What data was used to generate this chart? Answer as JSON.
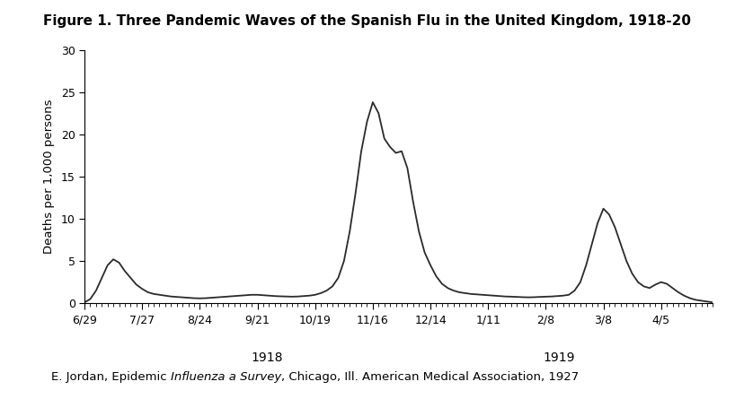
{
  "title": "Figure 1. Three Pandemic Waves of the Spanish Flu in the United Kingdom, 1918-20",
  "ylabel": "Deaths per 1,000 persons",
  "ylim": [
    0,
    30
  ],
  "yticks": [
    0,
    5,
    10,
    15,
    20,
    25,
    30
  ],
  "caption_prefix": "E. Jordan, Epidemic ",
  "caption_italic": "Influenza a Survey",
  "caption_suffix": ", Chicago, Ill. American Medical Association, 1927",
  "line_color": "#2a2a2a",
  "line_width": 1.3,
  "background_color": "#ffffff",
  "tick_labels": [
    "6/29",
    "7/27",
    "8/24",
    "9/21",
    "10/19",
    "11/16",
    "12/14",
    "1/11",
    "2/8",
    "3/8",
    "4/5"
  ],
  "year_1918_label": "1918",
  "year_1919_label": "1919",
  "x_values": [
    0,
    1,
    2,
    3,
    4,
    5,
    6,
    7,
    8,
    9,
    10,
    11,
    12,
    13,
    14,
    15,
    16,
    17,
    18,
    19,
    20,
    21,
    22,
    23,
    24,
    25,
    26,
    27,
    28,
    29,
    30,
    31,
    32,
    33,
    34,
    35,
    36,
    37,
    38,
    39,
    40,
    41,
    42,
    43,
    44,
    45,
    46,
    47,
    48,
    49,
    50,
    51,
    52,
    53,
    54,
    55,
    56,
    57,
    58,
    59,
    60,
    61,
    62,
    63,
    64,
    65,
    66,
    67,
    68,
    69,
    70,
    71,
    72,
    73,
    74,
    75,
    76,
    77,
    78,
    79,
    80,
    81,
    82,
    83,
    84,
    85,
    86,
    87,
    88,
    89,
    90,
    91,
    92,
    93,
    94,
    95,
    96,
    97,
    98,
    99,
    100,
    101,
    102,
    103,
    104,
    105,
    106,
    107,
    108,
    109
  ],
  "y_values": [
    0.1,
    0.5,
    1.5,
    3.0,
    4.5,
    5.2,
    4.8,
    3.8,
    3.0,
    2.2,
    1.7,
    1.3,
    1.1,
    1.0,
    0.9,
    0.8,
    0.75,
    0.7,
    0.65,
    0.6,
    0.58,
    0.6,
    0.65,
    0.7,
    0.75,
    0.8,
    0.85,
    0.9,
    0.95,
    1.0,
    1.0,
    0.95,
    0.9,
    0.85,
    0.82,
    0.8,
    0.78,
    0.8,
    0.85,
    0.9,
    1.0,
    1.2,
    1.5,
    2.0,
    3.0,
    5.0,
    8.5,
    13.0,
    18.0,
    21.5,
    23.8,
    22.5,
    19.5,
    18.5,
    17.8,
    18.0,
    16.0,
    12.0,
    8.5,
    6.0,
    4.5,
    3.2,
    2.3,
    1.8,
    1.5,
    1.3,
    1.2,
    1.1,
    1.05,
    1.0,
    0.95,
    0.9,
    0.85,
    0.8,
    0.78,
    0.75,
    0.72,
    0.7,
    0.72,
    0.75,
    0.78,
    0.8,
    0.85,
    0.9,
    1.0,
    1.5,
    2.5,
    4.5,
    7.0,
    9.5,
    11.2,
    10.5,
    9.0,
    7.0,
    5.0,
    3.5,
    2.5,
    2.0,
    1.8,
    2.2,
    2.5,
    2.3,
    1.8,
    1.3,
    0.9,
    0.6,
    0.4,
    0.3,
    0.2,
    0.1
  ]
}
